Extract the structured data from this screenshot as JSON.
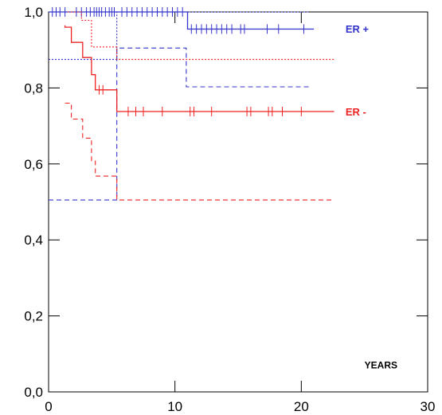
{
  "chart_data": {
    "type": "line",
    "title": "",
    "xlabel": "YEARS",
    "ylabel": "",
    "xlim": [
      0,
      30
    ],
    "ylim": [
      0,
      1
    ],
    "xticks": [
      "0",
      "10",
      "20",
      "30"
    ],
    "yticks": [
      "0,0",
      "0,2",
      "0,4",
      "0,6",
      "0,8",
      "1,0"
    ],
    "colors": {
      "er_pos": "#3333cc",
      "er_neg": "#ee2222",
      "axis": "#000000"
    },
    "series": [
      {
        "name": "ER +",
        "role": "estimate",
        "color": "#3333cc",
        "style": "solid",
        "steps": [
          [
            0,
            1.0
          ],
          [
            11.0,
            1.0
          ],
          [
            11.0,
            0.955
          ],
          [
            21.0,
            0.955
          ]
        ],
        "censor_marks": [
          0.3,
          0.6,
          0.9,
          1.3,
          2.2,
          2.6,
          3.0,
          3.3,
          3.6,
          3.8,
          4.0,
          4.2,
          4.5,
          4.8,
          5.0,
          5.2,
          5.8,
          6.2,
          6.6,
          7.0,
          7.4,
          7.8,
          8.2,
          8.6,
          9.0,
          9.4,
          9.8,
          10.2,
          10.6,
          11.3,
          11.7,
          12.1,
          12.5,
          12.9,
          13.3,
          13.7,
          14.1,
          14.5,
          15.2,
          15.5,
          17.3,
          18.2,
          20.2
        ]
      },
      {
        "role": "upper confidence limit",
        "color": "#3333cc",
        "style": "dotted",
        "steps": [
          [
            0,
            1.0
          ],
          [
            20.6,
            1.0
          ]
        ]
      },
      {
        "role": "lower confidence limit",
        "color": "#3333cc",
        "style": "dashed",
        "steps": [
          [
            0,
            0.505
          ],
          [
            5.4,
            0.505
          ],
          [
            5.4,
            0.905
          ],
          [
            10.9,
            0.905
          ],
          [
            10.9,
            0.803
          ],
          [
            20.6,
            0.803
          ]
        ]
      },
      {
        "role": "reference",
        "color": "#3333cc",
        "style": "dotted",
        "steps": [
          [
            0,
            0.875
          ],
          [
            5.4,
            0.875
          ],
          [
            5.4,
            1.0
          ]
        ]
      },
      {
        "name": "ER -",
        "role": "estimate",
        "color": "#ee2222",
        "style": "solid",
        "steps": [
          [
            1.3,
            0.965
          ],
          [
            1.3,
            0.96
          ],
          [
            1.8,
            0.96
          ],
          [
            1.8,
            0.92
          ],
          [
            2.7,
            0.92
          ],
          [
            2.7,
            0.88
          ],
          [
            3.4,
            0.88
          ],
          [
            3.4,
            0.835
          ],
          [
            3.7,
            0.835
          ],
          [
            3.7,
            0.795
          ],
          [
            5.4,
            0.795
          ],
          [
            5.4,
            0.738
          ],
          [
            22.6,
            0.738
          ]
        ],
        "censor_marks": [
          4.0,
          4.3,
          6.3,
          6.9,
          7.5,
          9.0,
          11.2,
          11.5,
          12.9,
          15.7,
          16.0,
          17.4,
          17.7,
          18.5,
          20.0
        ]
      },
      {
        "role": "upper confidence limit",
        "color": "#ee2222",
        "style": "dotted",
        "steps": [
          [
            1.5,
            1.0
          ],
          [
            2.6,
            1.0
          ],
          [
            2.6,
            0.978
          ],
          [
            3.4,
            0.978
          ],
          [
            3.4,
            0.908
          ],
          [
            5.4,
            0.908
          ],
          [
            5.4,
            0.875
          ],
          [
            22.6,
            0.875
          ]
        ]
      },
      {
        "role": "lower confidence limit",
        "color": "#ee2222",
        "style": "dashed",
        "steps": [
          [
            1.3,
            0.76
          ],
          [
            1.8,
            0.76
          ],
          [
            1.8,
            0.718
          ],
          [
            2.7,
            0.718
          ],
          [
            2.7,
            0.668
          ],
          [
            3.4,
            0.668
          ],
          [
            3.4,
            0.608
          ],
          [
            3.7,
            0.608
          ],
          [
            3.7,
            0.568
          ],
          [
            5.4,
            0.568
          ],
          [
            5.4,
            0.505
          ],
          [
            22.6,
            0.505
          ]
        ]
      }
    ],
    "legend": [
      {
        "label": "ER +",
        "color": "#3333cc",
        "x": 23.5,
        "y": 0.956
      },
      {
        "label": "ER -",
        "color": "#ee2222",
        "x": 23.5,
        "y": 0.738
      }
    ],
    "annotations": [
      {
        "text": "YEARS",
        "x": 25.0,
        "y": 0.07
      }
    ]
  }
}
